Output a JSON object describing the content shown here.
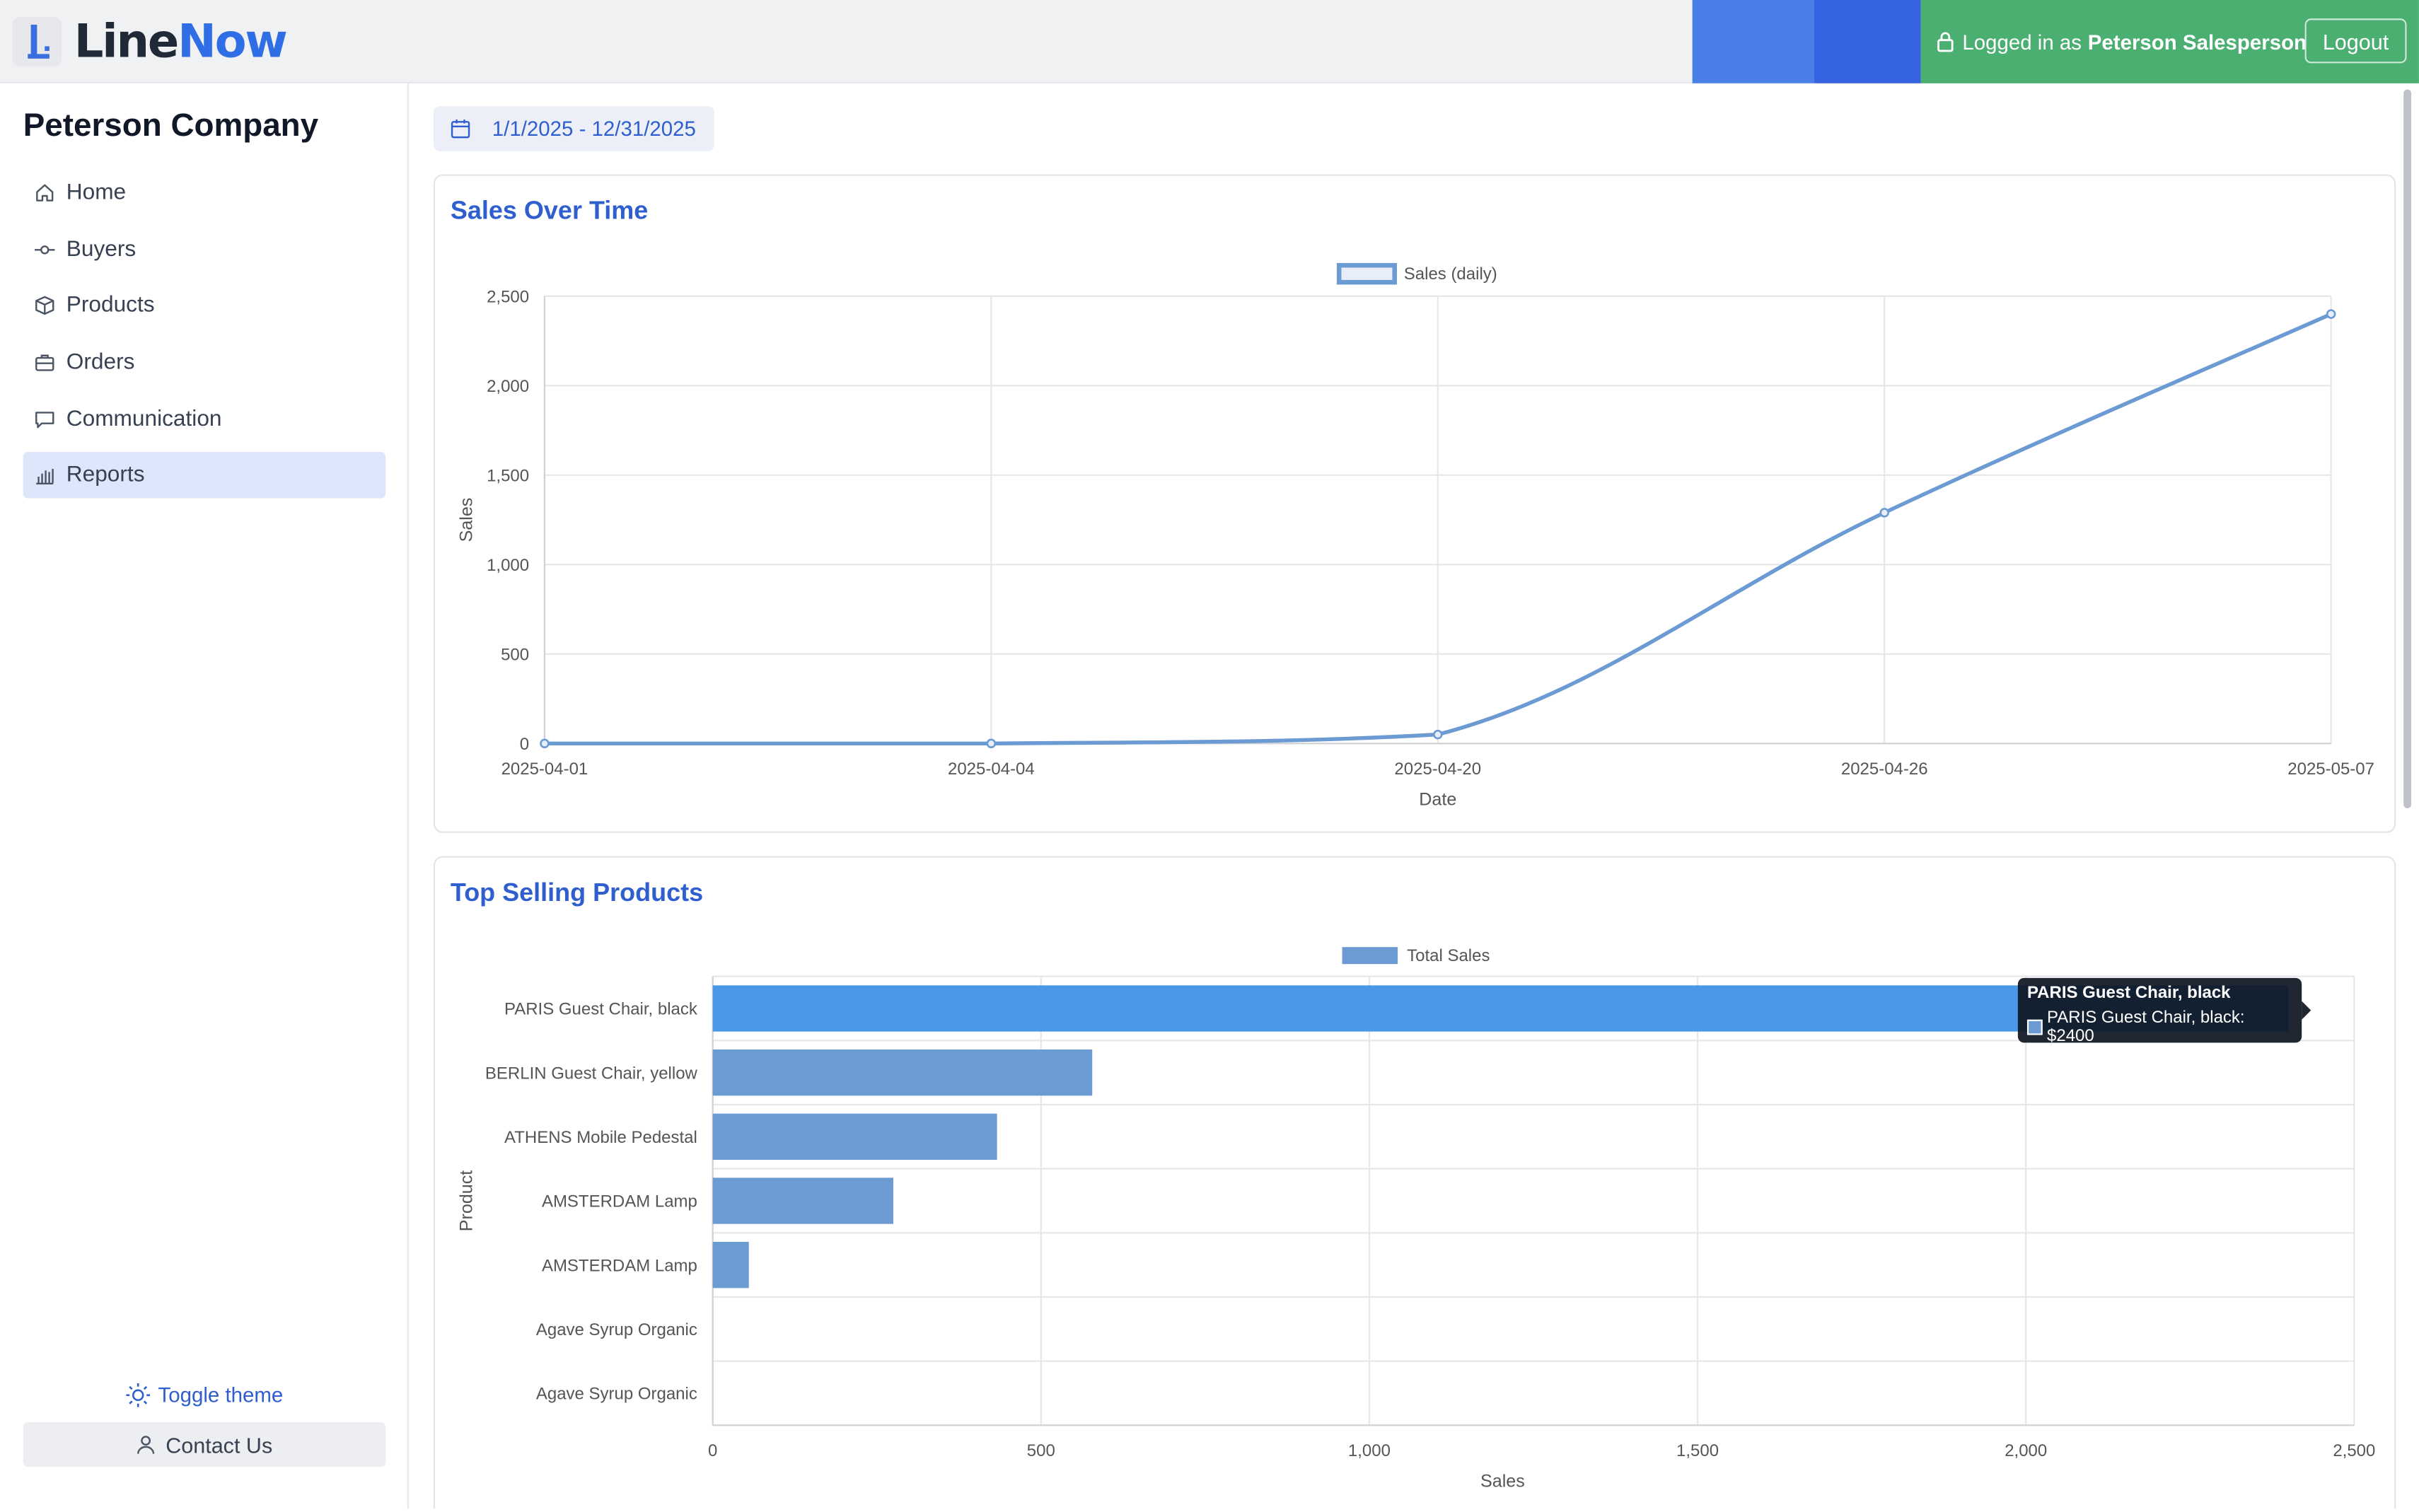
{
  "brand": {
    "name_part1": "Line",
    "name_part2": "Now"
  },
  "header": {
    "logged_in_prefix": "Logged in as",
    "user_name": "Peterson Salesperson",
    "logout_label": "Logout"
  },
  "sidebar": {
    "company": "Peterson Company",
    "items": [
      {
        "label": "Home",
        "icon": "home-icon"
      },
      {
        "label": "Buyers",
        "icon": "commit-icon"
      },
      {
        "label": "Products",
        "icon": "box-icon"
      },
      {
        "label": "Orders",
        "icon": "briefcase-icon"
      },
      {
        "label": "Communication",
        "icon": "message-icon"
      },
      {
        "label": "Reports",
        "icon": "bar-chart-icon",
        "active": true
      }
    ],
    "toggle_theme_label": "Toggle theme",
    "contact_label": "Contact Us"
  },
  "date_range": "1/1/2025 - 12/31/2025",
  "colors": {
    "accent": "#2f5fcf",
    "series": "#6b9bd2",
    "highlight": "#4a97e8",
    "user_bar": "#4caf72"
  },
  "cards": {
    "sales_title": "Sales Over Time",
    "products_title": "Top Selling Products"
  },
  "tooltip": {
    "title": "PARIS Guest Chair, black",
    "line": "PARIS Guest Chair, black: $2400"
  },
  "chart_data": [
    {
      "type": "line",
      "title": "Sales Over Time",
      "legend": [
        "Sales (daily)"
      ],
      "xlabel": "Date",
      "ylabel": "Sales",
      "x": [
        "2025-04-01",
        "2025-04-04",
        "2025-04-20",
        "2025-04-26",
        "2025-05-07"
      ],
      "series": [
        {
          "name": "Sales (daily)",
          "values": [
            0,
            0,
            50,
            1290,
            2400
          ]
        }
      ],
      "ylim": [
        0,
        2500
      ],
      "yticks": [
        0,
        500,
        1000,
        1500,
        2000,
        2500
      ],
      "ytick_labels": [
        "0",
        "500",
        "1,000",
        "1,500",
        "2,000",
        "2,500"
      ],
      "grid": true,
      "legend_position": "top-center"
    },
    {
      "type": "bar",
      "orientation": "horizontal",
      "title": "Top Selling Products",
      "legend": [
        "Total Sales"
      ],
      "xlabel": "Sales",
      "ylabel": "Product",
      "categories": [
        "PARIS Guest Chair, black",
        "BERLIN Guest Chair, yellow",
        "ATHENS Mobile Pedestal",
        "AMSTERDAM Lamp",
        "AMSTERDAM Lamp",
        "Agave Syrup Organic",
        "Agave Syrup Organic"
      ],
      "series": [
        {
          "name": "Total Sales",
          "values": [
            2400,
            578,
            433,
            275,
            55,
            0,
            0
          ]
        }
      ],
      "xlim": [
        0,
        2500
      ],
      "xticks": [
        0,
        500,
        1000,
        1500,
        2000,
        2500
      ],
      "xtick_labels": [
        "0",
        "500",
        "1,000",
        "1,500",
        "2,000",
        "2,500"
      ],
      "highlighted_index": 0,
      "grid": true,
      "legend_position": "top-center"
    }
  ]
}
